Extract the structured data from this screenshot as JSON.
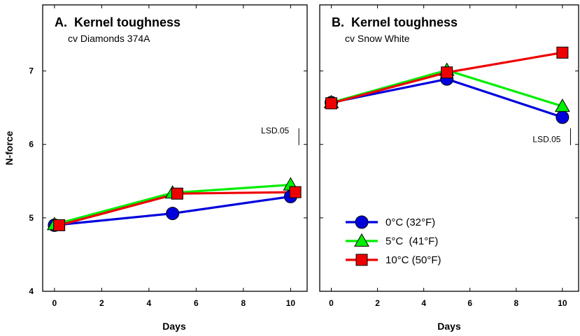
{
  "chart_data": [
    {
      "type": "line",
      "title": "A.  Kernel toughness",
      "subtitle": "cv Diamonds 374A",
      "xlabel": "Days",
      "ylabel": "N-force",
      "xlim": [
        -0.5,
        10.7
      ],
      "ylim": [
        4,
        7.9
      ],
      "xticks": [
        0,
        2,
        4,
        6,
        8,
        10
      ],
      "yticks": [
        4,
        5,
        6,
        7
      ],
      "lsd": {
        "label": "LSD.05",
        "x": 10.35,
        "y_low": 5.99,
        "y_high": 6.22
      },
      "series": [
        {
          "name": "0°C (32°F)",
          "color": "#0000dd",
          "marker": "circle",
          "x": [
            0,
            5,
            10
          ],
          "y": [
            4.9,
            5.06,
            5.29
          ]
        },
        {
          "name": "5°C  (41°F)",
          "color": "#00ee00",
          "marker": "triangle",
          "x": [
            0,
            5,
            10
          ],
          "y": [
            4.91,
            5.34,
            5.45
          ]
        },
        {
          "name": "10°C (50°F)",
          "color": "#ee0000",
          "marker": "square",
          "x": [
            0.2,
            5.2,
            10.2
          ],
          "y": [
            4.9,
            5.33,
            5.35
          ]
        }
      ]
    },
    {
      "type": "line",
      "title": "B.  Kernel toughness",
      "subtitle": "cv Snow White",
      "xlabel": "Days",
      "ylabel": "",
      "xlim": [
        -0.5,
        10.7
      ],
      "ylim": [
        4,
        7.9
      ],
      "xticks": [
        0,
        2,
        4,
        6,
        8,
        10
      ],
      "yticks": [
        4,
        5,
        6,
        7
      ],
      "lsd": {
        "label": "LSD.05",
        "x": 10.35,
        "y_low": 5.99,
        "y_high": 6.22
      },
      "series": [
        {
          "name": "0°C (32°F)",
          "color": "#0000dd",
          "marker": "circle",
          "x": [
            0,
            5,
            10
          ],
          "y": [
            6.57,
            6.89,
            6.37
          ]
        },
        {
          "name": "5°C  (41°F)",
          "color": "#00ee00",
          "marker": "triangle",
          "x": [
            0,
            5,
            10
          ],
          "y": [
            6.57,
            7.01,
            6.52
          ]
        },
        {
          "name": "10°C (50°F)",
          "color": "#ee0000",
          "marker": "square",
          "x": [
            0,
            5,
            10
          ],
          "y": [
            6.56,
            6.98,
            7.25
          ]
        }
      ]
    }
  ],
  "legend": {
    "placement": "bottom-left of panel B",
    "items": [
      {
        "label": "0°C (32°F)",
        "color": "#0000dd",
        "marker": "circle"
      },
      {
        "label": "5°C  (41°F)",
        "color": "#00ee00",
        "marker": "triangle"
      },
      {
        "label": "10°C (50°F)",
        "color": "#ee0000",
        "marker": "square"
      }
    ]
  }
}
